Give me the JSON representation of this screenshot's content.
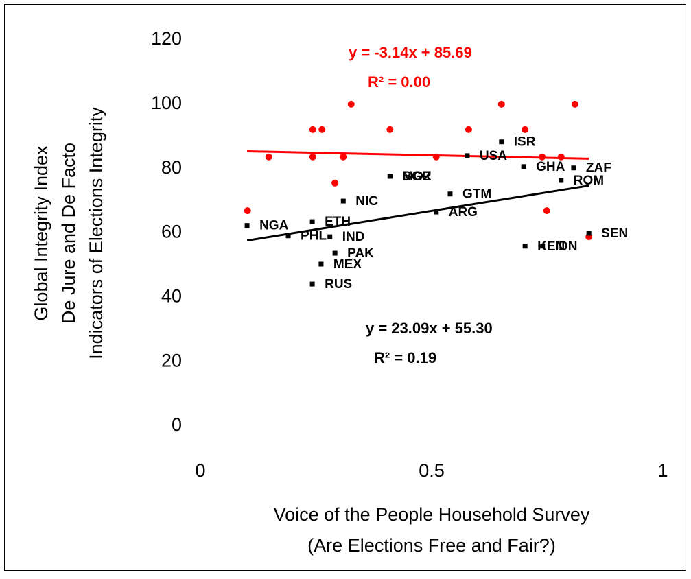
{
  "chart_data": {
    "type": "scatter",
    "x_label": [
      "Voice of the People Household Survey",
      "(Are Elections Free and Fair?)"
    ],
    "y_label": [
      "Global Integrity Index",
      "De Jure and De Facto",
      "Indicators of Elections Integrity"
    ],
    "xlim": [
      0,
      1
    ],
    "xticks": [
      0,
      0.5,
      1
    ],
    "ylim": [
      0,
      120
    ],
    "yticks": [
      0,
      20,
      40,
      60,
      80,
      100,
      120
    ],
    "series": [
      {
        "color": "#ff0000",
        "marker": "circle",
        "x": [
          0.102,
          0.148,
          0.243,
          0.263,
          0.243,
          0.309,
          0.291,
          0.326,
          0.41,
          0.51,
          0.58,
          0.651,
          0.702,
          0.739,
          0.78,
          0.749,
          0.81,
          0.84
        ],
        "values": [
          66.9,
          83.6,
          92.1,
          92.1,
          83.6,
          83.6,
          75.5,
          100,
          92.1,
          83.6,
          92.1,
          100,
          92.1,
          83.6,
          83.6,
          66.9,
          100,
          58.8
        ],
        "trendline": {
          "slope": -3.14,
          "intercept": 85.69,
          "equation": "y = -3.14x + 85.69",
          "r2": "R² = 0.00"
        }
      },
      {
        "color": "#000000",
        "marker": "square",
        "labels": [
          "NGA",
          "ETH",
          "PHL",
          "IND",
          "NIC",
          "PAK",
          "MEX",
          "RUS",
          "MOZ",
          "BGR",
          "GTM",
          "ARG",
          "USA",
          "ISR",
          "GHA",
          "ZAF",
          "ROM",
          "SEN",
          "KEN",
          "IDN"
        ],
        "x": [
          0.101,
          0.242,
          0.19,
          0.28,
          0.309,
          0.291,
          0.261,
          0.242,
          0.41,
          0.41,
          0.54,
          0.51,
          0.577,
          0.651,
          0.699,
          0.807,
          0.78,
          0.84,
          0.702,
          0.74
        ],
        "values": [
          62.3,
          63.5,
          59.1,
          58.8,
          69.9,
          53.7,
          50.3,
          44.1,
          77.6,
          77.6,
          72.1,
          66.5,
          84.0,
          88.3,
          80.6,
          80.2,
          76.3,
          59.9,
          55.9,
          55.9
        ],
        "trendline": {
          "slope": 23.09,
          "intercept": 55.3,
          "equation": "y = 23.09x + 55.30",
          "r2": "R² = 0.19"
        }
      }
    ]
  }
}
